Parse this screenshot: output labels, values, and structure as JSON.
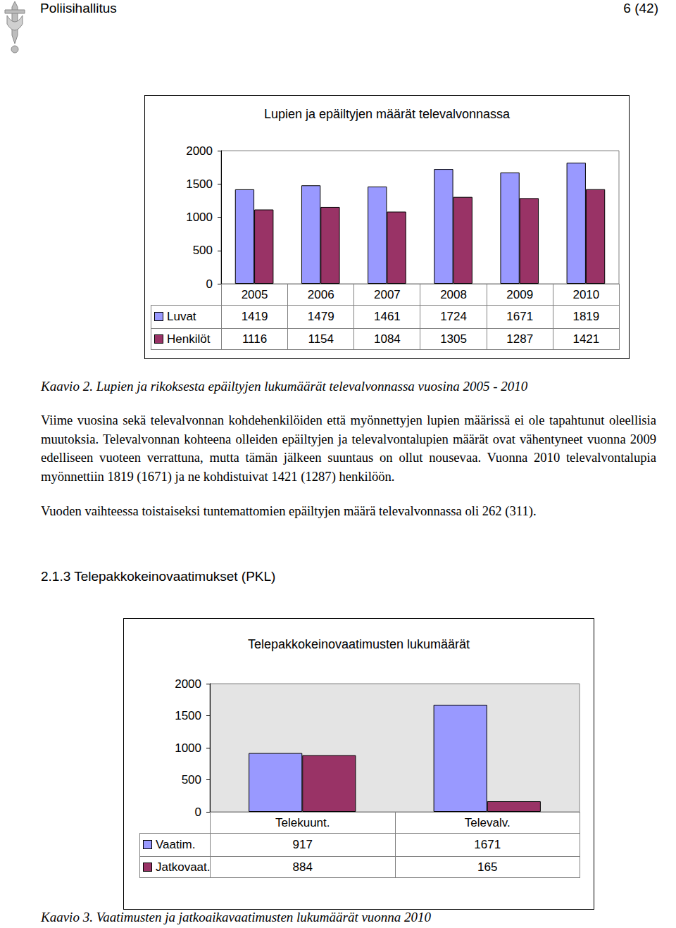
{
  "header": {
    "organisation": "Poliisihallitus",
    "page": "6 (42)"
  },
  "chart_data": [
    {
      "type": "bar",
      "title": "Lupien ja epäiltyjen määrät televalvonnassa",
      "categories": [
        "2005",
        "2006",
        "2007",
        "2008",
        "2009",
        "2010"
      ],
      "series": [
        {
          "name": "Luvat",
          "color": "#9999ff",
          "values": [
            1419,
            1479,
            1461,
            1724,
            1671,
            1819
          ]
        },
        {
          "name": "Henkilöt",
          "color": "#993366",
          "values": [
            1116,
            1154,
            1084,
            1305,
            1287,
            1421
          ]
        }
      ],
      "ylim": [
        0,
        2000
      ],
      "yticks": [
        0,
        500,
        1000,
        1500,
        2000
      ],
      "grid": false
    },
    {
      "type": "bar",
      "title": "Telepakkokeinovaatimusten lukumäärät",
      "categories": [
        "Telekuunt.",
        "Televalv."
      ],
      "series": [
        {
          "name": "Vaatim.",
          "color": "#9999ff",
          "values": [
            917,
            1671
          ]
        },
        {
          "name": "Jatkovaat.",
          "color": "#993366",
          "values": [
            884,
            165
          ]
        }
      ],
      "ylim": [
        0,
        2000
      ],
      "yticks": [
        0,
        500,
        1000,
        1500,
        2000
      ],
      "grid": false
    }
  ],
  "body": {
    "caption_1": "Kaavio 2. Lupien ja rikoksesta epäiltyjen lukumäärät televalvonnassa vuosina 2005 - 2010",
    "paragraph_1": "Viime vuosina sekä televalvonnan kohdehenkilöiden että myönnettyjen lupien määrissä ei ole tapahtunut oleellisia muutoksia. Televalvonnan kohteena olleiden epäiltyjen ja televalvontalupien määrät ovat vähentyneet vuonna 2009 edelliseen vuoteen verrattuna, mutta tämän jälkeen suuntaus on ollut nousevaa. Vuonna 2010 televalvontalupia myönnettiin 1819 (1671) ja ne kohdistuivat 1421 (1287) henkilöön.",
    "paragraph_2": "Vuoden vaihteessa toistaiseksi tuntemattomien epäiltyjen määrä televalvonnassa oli 262 (311).",
    "heading": "2.1.3 Telepakkokeinovaatimukset (PKL)",
    "caption_2": "Kaavio 3. Vaatimusten ja jatkoaikavaatimusten lukumäärät vuonna 2010"
  }
}
